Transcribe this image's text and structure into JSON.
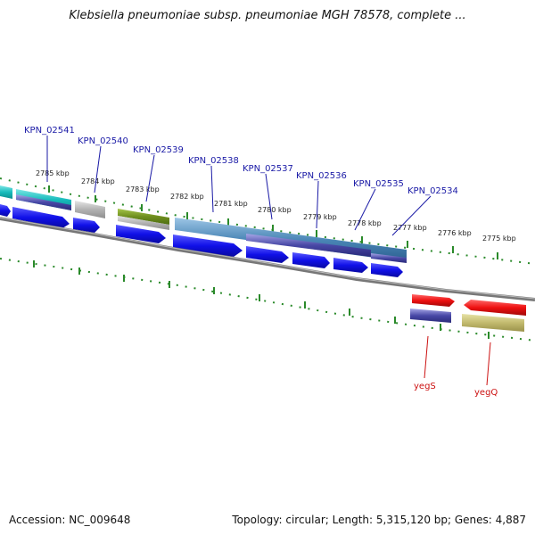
{
  "title": "Klebsiella pneumoniae subsp. pneumoniae MGH 78578, complete ...",
  "footer": {
    "accession": "Accession: NC_009648",
    "summary": "Topology: circular; Length: 5,315,120 bp; Genes: 4,887"
  },
  "kbp_labels": [
    "2785 kbp",
    "2784 kbp",
    "2783 kbp",
    "2782 kbp",
    "2781 kbp",
    "2780 kbp",
    "2779 kbp",
    "2778 kbp",
    "2777 kbp",
    "2776 kbp",
    "2775 kbp"
  ],
  "genes_top": [
    "KPN_02541",
    "KPN_02540",
    "KPN_02539",
    "KPN_02538",
    "KPN_02537",
    "KPN_02536",
    "KPN_02535",
    "KPN_02534"
  ],
  "genes_bottom": [
    "yegS",
    "yegQ"
  ],
  "colors": {
    "blue": "#1010e8",
    "red": "#ee1111",
    "green_ticks": "#2a8a2a",
    "backbone": "#888888",
    "label_blue": "#1a1aa6",
    "label_red": "#cc1111"
  }
}
